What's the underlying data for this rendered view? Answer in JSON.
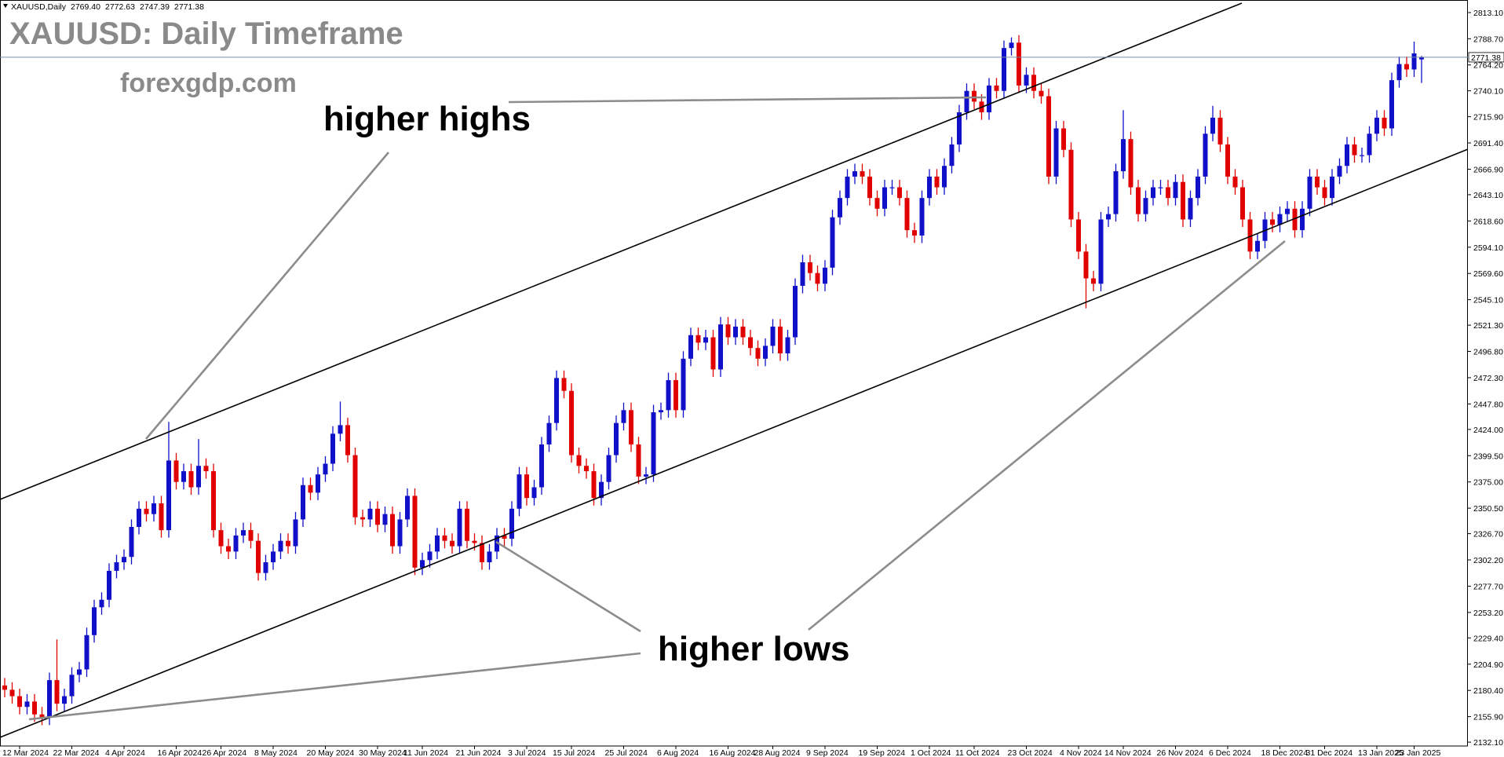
{
  "chart_data": {
    "type": "candlestick",
    "title": "XAUUSD: Daily Timeframe",
    "subtitle": "forexgdp.com",
    "annotations": [
      "higher highs",
      "higher lows"
    ],
    "header": {
      "symbol": "XAUUSD,Daily",
      "ohlc": [
        "2769.40",
        "2772.63",
        "2747.39",
        "2771.38"
      ]
    },
    "price_label": {
      "value": 2771.38,
      "label": "2771.38"
    },
    "colors": {
      "up": "#1010c8",
      "down": "#e00000"
    },
    "ylim": [
      2128.5,
      2823.0
    ],
    "yticks": [
      {
        "value": 2813.1,
        "label": "2813.10"
      },
      {
        "value": 2788.7,
        "label": "2788.70"
      },
      {
        "value": 2764.2,
        "label": "2764.20"
      },
      {
        "value": 2740.1,
        "label": "2740.10"
      },
      {
        "value": 2715.9,
        "label": "2715.90"
      },
      {
        "value": 2691.4,
        "label": "2691.40"
      },
      {
        "value": 2666.9,
        "label": "2666.90"
      },
      {
        "value": 2643.1,
        "label": "2643.10"
      },
      {
        "value": 2618.6,
        "label": "2618.60"
      },
      {
        "value": 2594.1,
        "label": "2594.10"
      },
      {
        "value": 2569.6,
        "label": "2569.60"
      },
      {
        "value": 2545.1,
        "label": "2545.10"
      },
      {
        "value": 2521.3,
        "label": "2521.30"
      },
      {
        "value": 2496.8,
        "label": "2496.80"
      },
      {
        "value": 2472.3,
        "label": "2472.30"
      },
      {
        "value": 2447.8,
        "label": "2447.80"
      },
      {
        "value": 2424,
        "label": "2424.00"
      },
      {
        "value": 2399.5,
        "label": "2399.50"
      },
      {
        "value": 2375,
        "label": "2375.00"
      },
      {
        "value": 2350.5,
        "label": "2350.50"
      },
      {
        "value": 2326.7,
        "label": "2326.70"
      },
      {
        "value": 2302.2,
        "label": "2302.20"
      },
      {
        "value": 2277.7,
        "label": "2277.70"
      },
      {
        "value": 2253.2,
        "label": "2253.20"
      },
      {
        "value": 2229.4,
        "label": "2229.40"
      },
      {
        "value": 2204.9,
        "label": "2204.90"
      },
      {
        "value": 2180.4,
        "label": "2180.40"
      },
      {
        "value": 2155.9,
        "label": "2155.90"
      },
      {
        "value": 2132.1,
        "label": "2132.10"
      }
    ],
    "categories": [
      null,
      null,
      "12 Mar 2024",
      null,
      null,
      null,
      null,
      null,
      null,
      "22 Mar 2024",
      null,
      null,
      null,
      null,
      null,
      null,
      "4 Apr 2024",
      null,
      null,
      null,
      null,
      null,
      null,
      "16 Apr 2024",
      null,
      null,
      null,
      null,
      null,
      "26 Apr 2024",
      null,
      null,
      null,
      null,
      null,
      null,
      "8 May 2024",
      null,
      null,
      null,
      null,
      null,
      null,
      "20 May 2024",
      null,
      null,
      null,
      null,
      null,
      null,
      "30 May 2024",
      null,
      null,
      null,
      null,
      null,
      "11 Jun 2024",
      null,
      null,
      null,
      null,
      null,
      null,
      "21 Jun 2024",
      null,
      null,
      null,
      null,
      null,
      null,
      "3 Jul 2024",
      null,
      null,
      null,
      null,
      null,
      "15 Jul 2024",
      null,
      null,
      null,
      null,
      null,
      null,
      "25 Jul 2024",
      null,
      null,
      null,
      null,
      null,
      null,
      "6 Aug 2024",
      null,
      null,
      null,
      null,
      null,
      null,
      "16 Aug 2024",
      null,
      null,
      null,
      null,
      null,
      "28 Aug 2024",
      null,
      null,
      null,
      null,
      null,
      null,
      "9 Sep 2024",
      null,
      null,
      null,
      null,
      null,
      null,
      "19 Sep 2024",
      null,
      null,
      null,
      null,
      null,
      null,
      "1 Oct 2024",
      null,
      null,
      null,
      null,
      null,
      "11 Oct 2024",
      null,
      null,
      null,
      null,
      null,
      null,
      "23 Oct 2024",
      null,
      null,
      null,
      null,
      null,
      null,
      "4 Nov 2024",
      null,
      null,
      null,
      null,
      null,
      "14 Nov 2024",
      null,
      null,
      null,
      null,
      null,
      null,
      "26 Nov 2024",
      null,
      null,
      null,
      null,
      null,
      null,
      "6 Dec 2024",
      null,
      null,
      null,
      null,
      null,
      null,
      "18 Dec 2024",
      null,
      null,
      null,
      null,
      null,
      "31 Dec 2024",
      null,
      null,
      null,
      null,
      null,
      null,
      "13 Jan 2025",
      null,
      null,
      null,
      null,
      "23 Jan 2025",
      null
    ],
    "open": [
      2185,
      2181,
      2175,
      2165,
      2170,
      2158,
      2155,
      2190,
      2168,
      2175,
      2195,
      2200,
      2232,
      2258,
      2265,
      2292,
      2300,
      2305,
      2333,
      2350,
      2345,
      2355,
      2330,
      2395,
      2375,
      2385,
      2370,
      2390,
      2385,
      2330,
      2315,
      2310,
      2325,
      2330,
      2320,
      2290,
      2300,
      2310,
      2320,
      2315,
      2340,
      2372,
      2365,
      2382,
      2392,
      2420,
      2428,
      2400,
      2342,
      2340,
      2350,
      2335,
      2345,
      2315,
      2340,
      2362,
      2295,
      2302,
      2310,
      2325,
      2320,
      2315,
      2350,
      2320,
      2318,
      2300,
      2310,
      2325,
      2322,
      2350,
      2382,
      2360,
      2370,
      2410,
      2430,
      2472,
      2460,
      2400,
      2390,
      2385,
      2360,
      2375,
      2400,
      2430,
      2442,
      2410,
      2380,
      2382,
      2440,
      2442,
      2470,
      2442,
      2490,
      2512,
      2505,
      2510,
      2480,
      2522,
      2510,
      2520,
      2510,
      2500,
      2490,
      2502,
      2520,
      2495,
      2510,
      2558,
      2580,
      2570,
      2560,
      2575,
      2622,
      2640,
      2660,
      2665,
      2660,
      2640,
      2630,
      2650,
      2650,
      2640,
      2610,
      2605,
      2640,
      2660,
      2650,
      2670,
      2690,
      2720,
      2740,
      2730,
      2720,
      2745,
      2740,
      2780,
      2785,
      2745,
      2755,
      2740,
      2735,
      2660,
      2705,
      2685,
      2620,
      2590,
      2565,
      2560,
      2620,
      2625,
      2665,
      2695,
      2650,
      2625,
      2640,
      2650,
      2650,
      2640,
      2655,
      2620,
      2640,
      2660,
      2700,
      2715,
      2690,
      2660,
      2650,
      2620,
      2590,
      2600,
      2620,
      2615,
      2625,
      2630,
      2610,
      2630,
      2660,
      2650,
      2640,
      2660,
      2670,
      2690,
      2680,
      2680,
      2700,
      2715,
      2705,
      2750,
      2765,
      2760,
      2769.4
    ],
    "high": [
      2192,
      2188,
      2182,
      2177,
      2177,
      2165,
      2197,
      2228,
      2182,
      2202,
      2207,
      2239,
      2265,
      2272,
      2299,
      2307,
      2312,
      2340,
      2357,
      2357,
      2362,
      2362,
      2431,
      2402,
      2392,
      2392,
      2415,
      2397,
      2392,
      2337,
      2322,
      2332,
      2337,
      2337,
      2327,
      2307,
      2317,
      2327,
      2327,
      2347,
      2379,
      2379,
      2389,
      2399,
      2427,
      2450,
      2435,
      2407,
      2349,
      2357,
      2357,
      2352,
      2352,
      2347,
      2369,
      2369,
      2309,
      2317,
      2332,
      2332,
      2327,
      2357,
      2357,
      2327,
      2325,
      2317,
      2332,
      2332,
      2357,
      2389,
      2389,
      2377,
      2417,
      2437,
      2479,
      2479,
      2467,
      2407,
      2397,
      2392,
      2382,
      2407,
      2437,
      2449,
      2449,
      2417,
      2389,
      2447,
      2449,
      2477,
      2477,
      2497,
      2519,
      2519,
      2517,
      2517,
      2529,
      2529,
      2527,
      2527,
      2517,
      2507,
      2509,
      2527,
      2527,
      2517,
      2565,
      2587,
      2587,
      2577,
      2582,
      2629,
      2647,
      2667,
      2672,
      2672,
      2667,
      2647,
      2657,
      2657,
      2657,
      2647,
      2617,
      2647,
      2667,
      2667,
      2677,
      2697,
      2727,
      2747,
      2747,
      2737,
      2752,
      2752,
      2787,
      2790,
      2792,
      2762,
      2762,
      2747,
      2742,
      2712,
      2712,
      2692,
      2627,
      2597,
      2572,
      2627,
      2632,
      2672,
      2722,
      2702,
      2657,
      2647,
      2657,
      2657,
      2657,
      2662,
      2662,
      2647,
      2667,
      2707,
      2726,
      2722,
      2697,
      2667,
      2657,
      2627,
      2607,
      2627,
      2627,
      2632,
      2637,
      2637,
      2637,
      2667,
      2667,
      2657,
      2667,
      2677,
      2697,
      2697,
      2687,
      2707,
      2722,
      2722,
      2757,
      2772,
      2772,
      2786,
      2772.63
    ],
    "low": [
      2174,
      2168,
      2158,
      2158,
      2151,
      2148,
      2148,
      2161,
      2161,
      2168,
      2188,
      2193,
      2225,
      2251,
      2258,
      2285,
      2293,
      2298,
      2326,
      2338,
      2338,
      2323,
      2323,
      2368,
      2368,
      2363,
      2363,
      2378,
      2323,
      2308,
      2303,
      2303,
      2318,
      2313,
      2283,
      2283,
      2293,
      2303,
      2308,
      2308,
      2333,
      2358,
      2358,
      2375,
      2385,
      2413,
      2393,
      2335,
      2333,
      2333,
      2328,
      2328,
      2308,
      2308,
      2333,
      2288,
      2288,
      2295,
      2303,
      2313,
      2308,
      2308,
      2313,
      2311,
      2293,
      2293,
      2303,
      2315,
      2315,
      2343,
      2353,
      2353,
      2363,
      2403,
      2423,
      2453,
      2393,
      2383,
      2378,
      2353,
      2353,
      2368,
      2393,
      2423,
      2403,
      2373,
      2373,
      2375,
      2433,
      2435,
      2435,
      2435,
      2483,
      2498,
      2498,
      2473,
      2473,
      2503,
      2503,
      2503,
      2493,
      2483,
      2483,
      2495,
      2488,
      2488,
      2503,
      2551,
      2563,
      2553,
      2553,
      2568,
      2615,
      2633,
      2653,
      2653,
      2633,
      2623,
      2623,
      2643,
      2633,
      2603,
      2598,
      2598,
      2633,
      2643,
      2643,
      2663,
      2683,
      2713,
      2723,
      2713,
      2713,
      2733,
      2733,
      2773,
      2738,
      2738,
      2733,
      2728,
      2653,
      2653,
      2678,
      2613,
      2583,
      2537,
      2553,
      2553,
      2613,
      2618,
      2658,
      2643,
      2618,
      2618,
      2633,
      2643,
      2633,
      2633,
      2613,
      2613,
      2633,
      2653,
      2693,
      2683,
      2653,
      2643,
      2613,
      2583,
      2583,
      2593,
      2608,
      2608,
      2618,
      2603,
      2603,
      2623,
      2643,
      2633,
      2633,
      2653,
      2663,
      2673,
      2673,
      2673,
      2693,
      2698,
      2698,
      2743,
      2753,
      2753,
      2747.39
    ],
    "close": [
      2181,
      2175,
      2165,
      2170,
      2158,
      2155,
      2190,
      2168,
      2175,
      2195,
      2200,
      2232,
      2258,
      2265,
      2292,
      2300,
      2305,
      2333,
      2350,
      2345,
      2355,
      2330,
      2395,
      2375,
      2385,
      2370,
      2390,
      2385,
      2330,
      2315,
      2310,
      2325,
      2330,
      2320,
      2290,
      2300,
      2310,
      2320,
      2315,
      2340,
      2372,
      2365,
      2382,
      2392,
      2420,
      2428,
      2400,
      2342,
      2340,
      2350,
      2335,
      2345,
      2315,
      2340,
      2362,
      2295,
      2302,
      2310,
      2325,
      2320,
      2315,
      2350,
      2320,
      2318,
      2300,
      2310,
      2325,
      2322,
      2350,
      2382,
      2360,
      2370,
      2410,
      2430,
      2472,
      2460,
      2400,
      2390,
      2385,
      2360,
      2375,
      2400,
      2430,
      2442,
      2410,
      2380,
      2382,
      2440,
      2442,
      2470,
      2442,
      2490,
      2512,
      2505,
      2510,
      2480,
      2522,
      2510,
      2520,
      2510,
      2500,
      2490,
      2502,
      2520,
      2495,
      2510,
      2558,
      2580,
      2570,
      2560,
      2575,
      2622,
      2640,
      2660,
      2665,
      2660,
      2640,
      2630,
      2650,
      2650,
      2640,
      2610,
      2605,
      2640,
      2660,
      2650,
      2670,
      2690,
      2720,
      2740,
      2730,
      2720,
      2745,
      2740,
      2780,
      2785,
      2745,
      2755,
      2740,
      2735,
      2660,
      2705,
      2685,
      2620,
      2590,
      2565,
      2560,
      2620,
      2625,
      2665,
      2695,
      2650,
      2625,
      2640,
      2650,
      2650,
      2640,
      2655,
      2620,
      2640,
      2660,
      2700,
      2715,
      2690,
      2660,
      2650,
      2620,
      2590,
      2600,
      2620,
      2615,
      2625,
      2630,
      2610,
      2630,
      2660,
      2650,
      2640,
      2660,
      2670,
      2690,
      2680,
      2680,
      2700,
      2715,
      2705,
      2750,
      2765,
      2760,
      2775,
      2771.38
    ]
  }
}
